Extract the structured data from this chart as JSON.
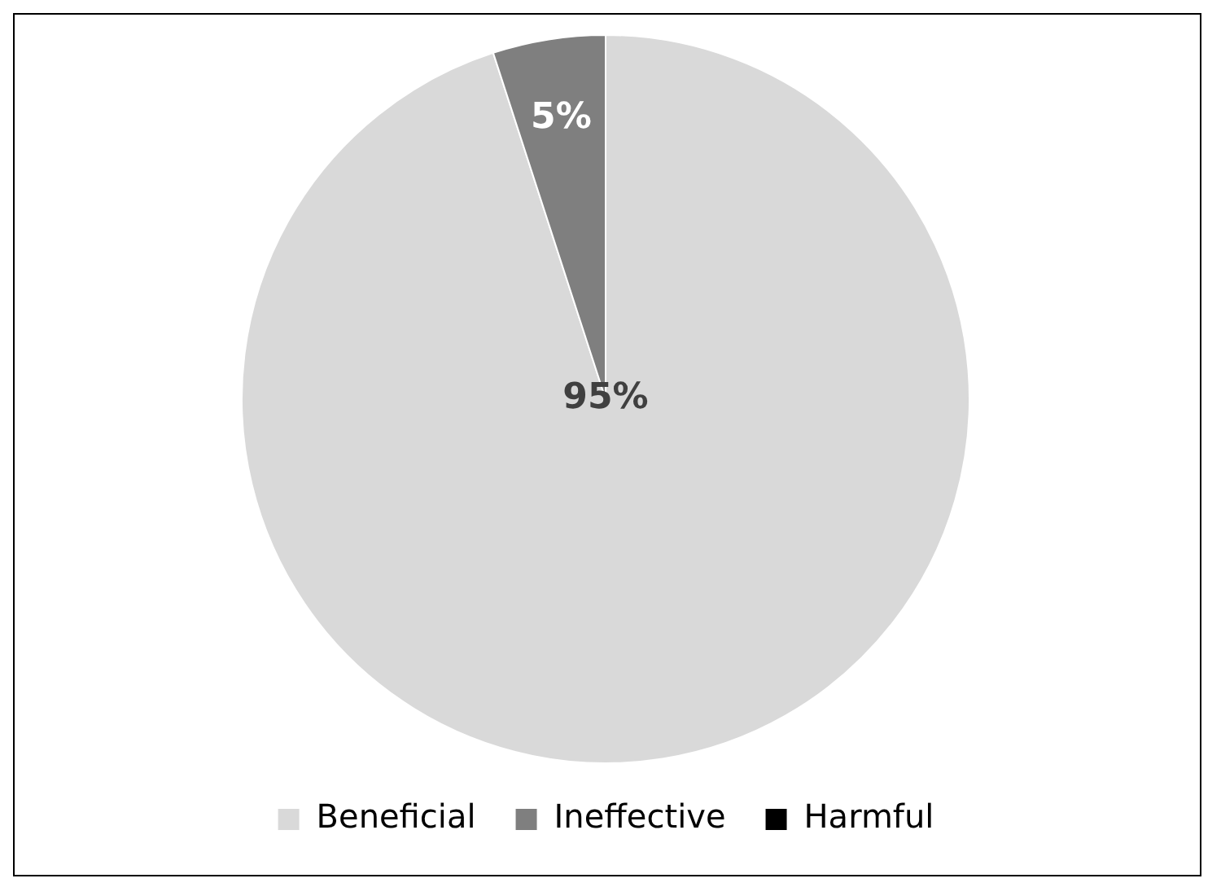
{
  "chart_data": {
    "type": "pie",
    "categories": [
      "Beneficial",
      "Ineffective",
      "Harmful"
    ],
    "values": [
      95,
      5,
      0
    ],
    "colors": [
      "#d9d9d9",
      "#7f7f7f",
      "#000000"
    ],
    "value_labels": [
      "95%",
      "5%",
      null
    ],
    "legend": "bottom"
  }
}
